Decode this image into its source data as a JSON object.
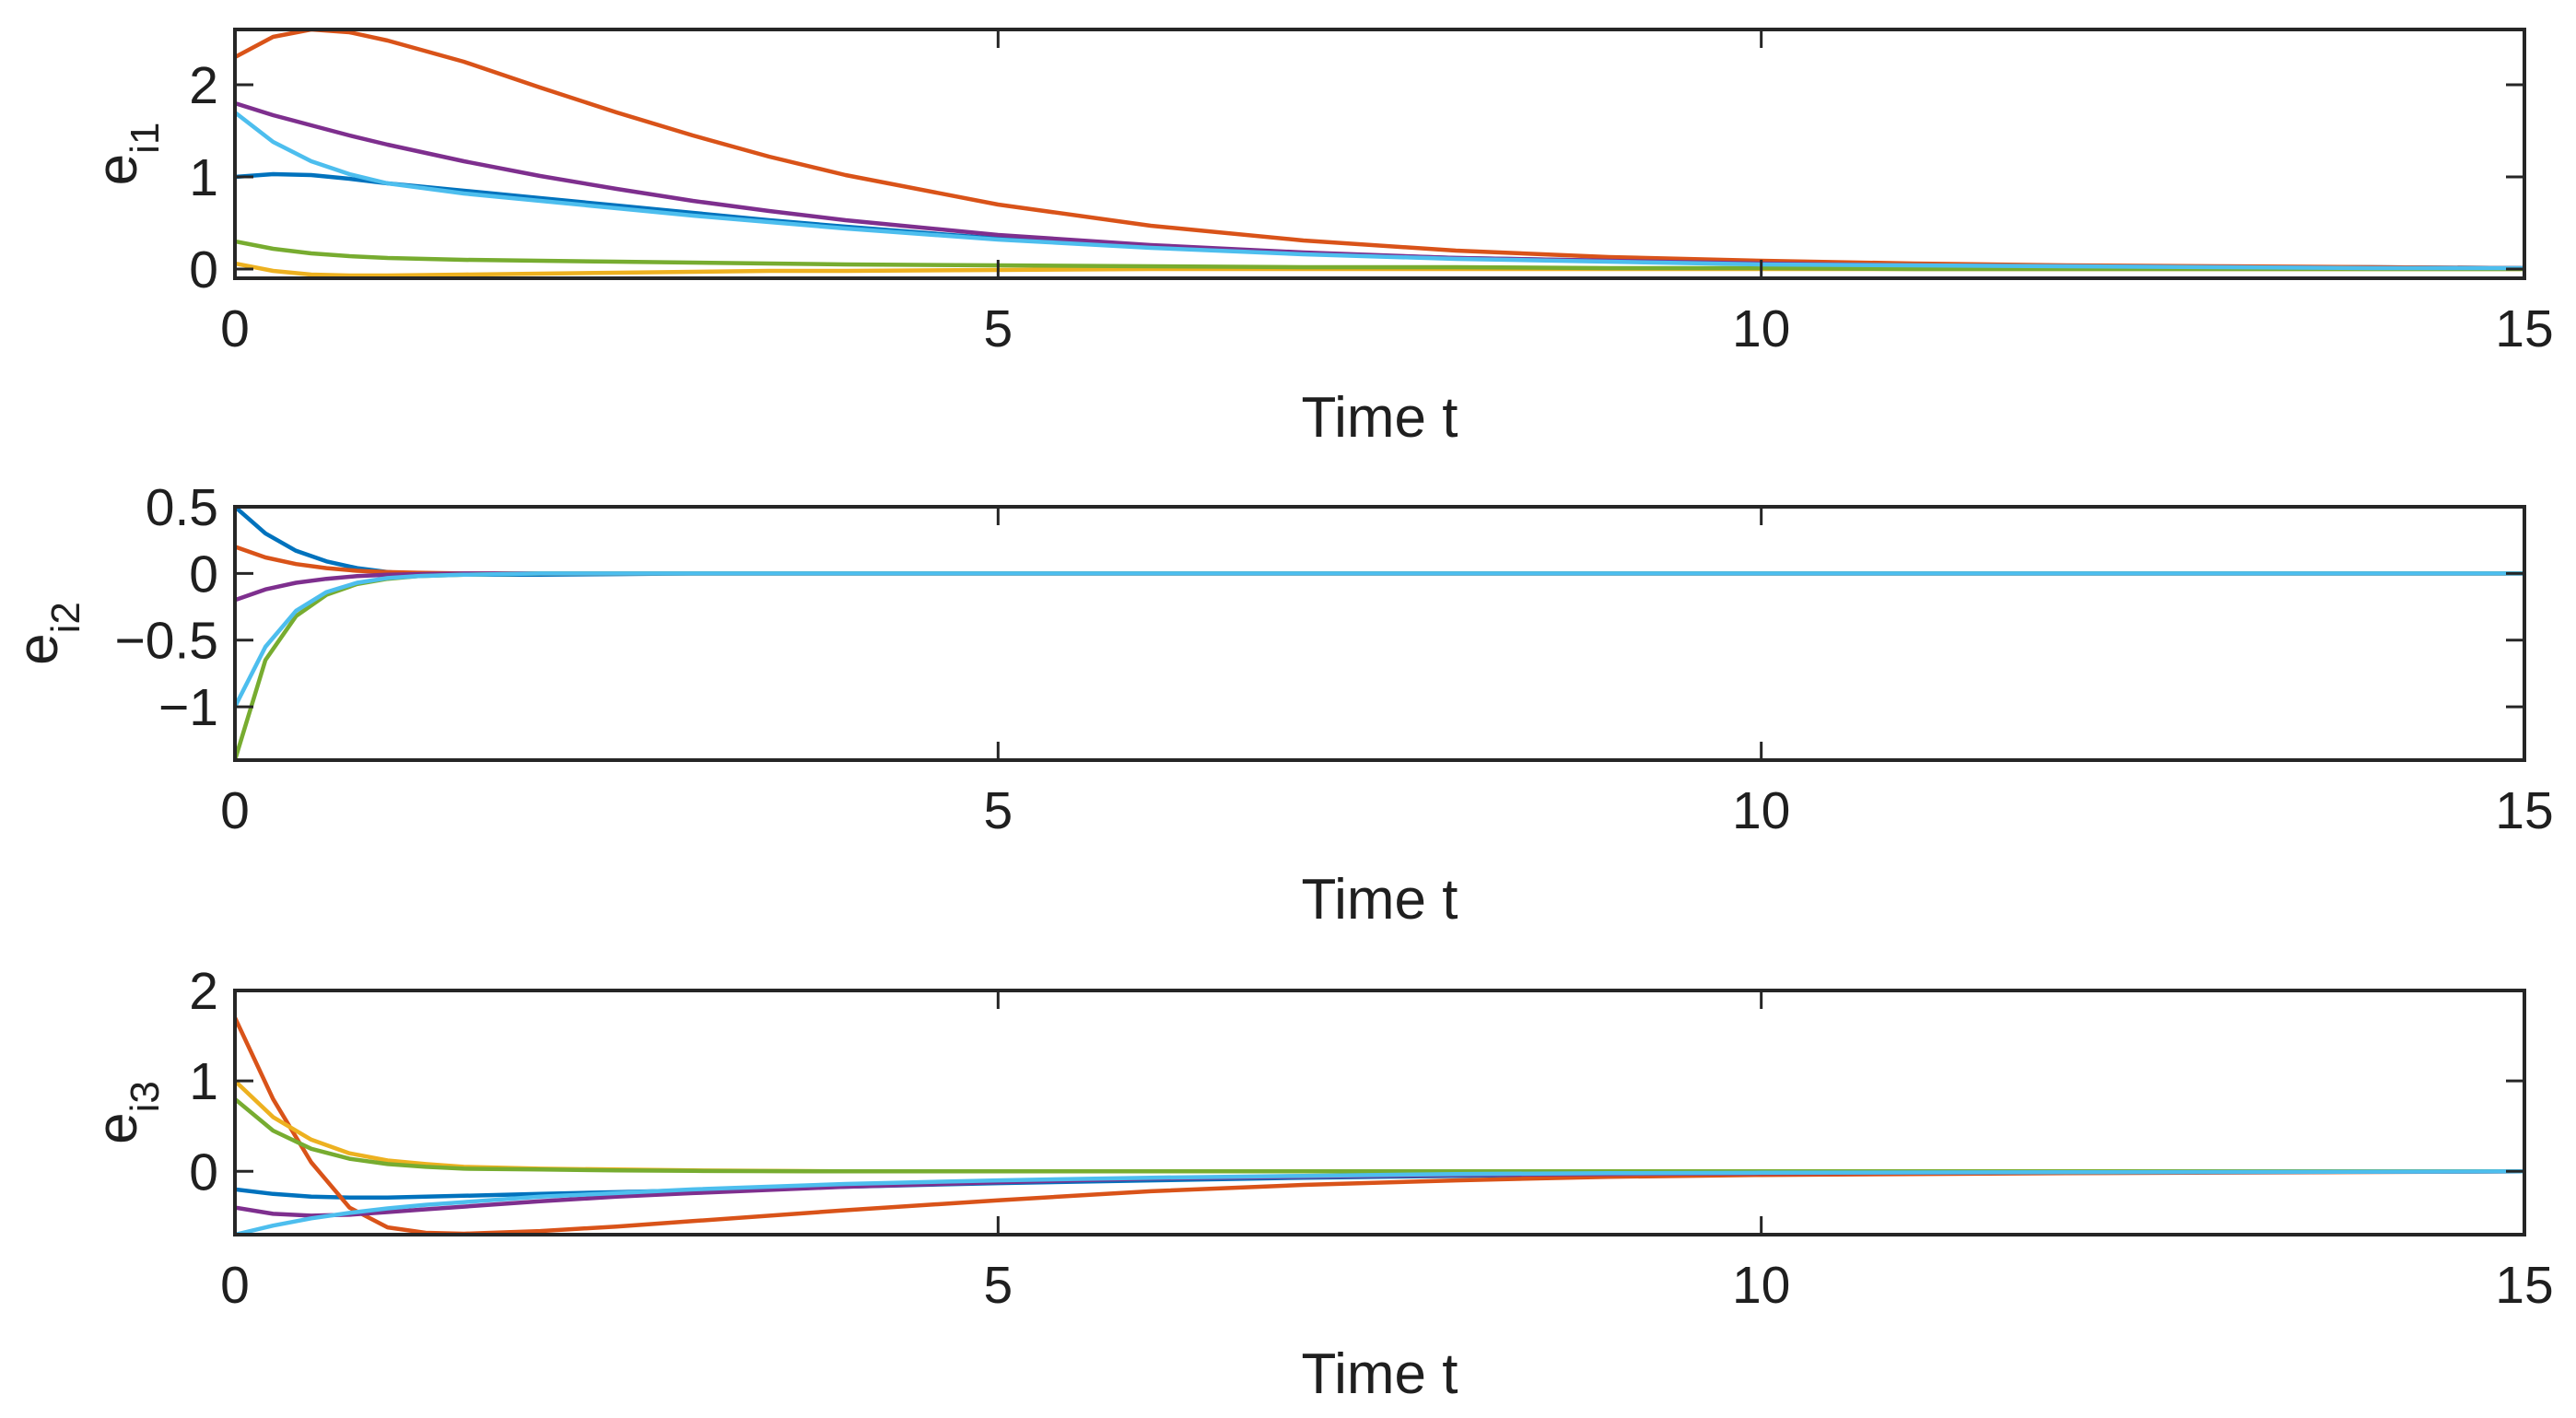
{
  "chart_data": [
    {
      "type": "line",
      "title": "",
      "xlabel": "Time t",
      "ylabel": "e",
      "ylabel_sub": "i1",
      "xlim": [
        0,
        15
      ],
      "ylim": [
        -0.1,
        2.6
      ],
      "xticks": [
        0,
        5,
        10,
        15
      ],
      "xtick_labels": [
        "0",
        "5",
        "10",
        "15"
      ],
      "yticks": [
        0,
        1,
        2
      ],
      "ytick_labels": [
        "0",
        "1",
        "2"
      ],
      "grid": false,
      "x": [
        0,
        0.25,
        0.5,
        0.75,
        1,
        1.5,
        2,
        2.5,
        3,
        3.5,
        4,
        5,
        6,
        7,
        8,
        9,
        10,
        11,
        12,
        13,
        14,
        15
      ],
      "series": [
        {
          "name": "blue",
          "color": "#0072BD",
          "values": [
            1.0,
            1.03,
            1.02,
            0.98,
            0.93,
            0.85,
            0.77,
            0.69,
            0.61,
            0.53,
            0.46,
            0.33,
            0.24,
            0.17,
            0.12,
            0.09,
            0.06,
            0.04,
            0.03,
            0.02,
            0.02,
            0.01
          ]
        },
        {
          "name": "orange",
          "color": "#D95319",
          "values": [
            2.3,
            2.52,
            2.6,
            2.57,
            2.48,
            2.25,
            1.97,
            1.7,
            1.45,
            1.22,
            1.02,
            0.7,
            0.47,
            0.31,
            0.2,
            0.13,
            0.09,
            0.06,
            0.04,
            0.03,
            0.02,
            0.01
          ]
        },
        {
          "name": "yellow",
          "color": "#EDB120",
          "values": [
            0.06,
            -0.02,
            -0.06,
            -0.07,
            -0.07,
            -0.06,
            -0.05,
            -0.04,
            -0.03,
            -0.02,
            -0.02,
            -0.01,
            0,
            0,
            0,
            0,
            0,
            0,
            0,
            0,
            0,
            0
          ]
        },
        {
          "name": "purple",
          "color": "#7E2F8E",
          "values": [
            1.8,
            1.67,
            1.56,
            1.45,
            1.35,
            1.17,
            1.01,
            0.87,
            0.74,
            0.63,
            0.53,
            0.37,
            0.26,
            0.18,
            0.12,
            0.09,
            0.06,
            0.04,
            0.03,
            0.02,
            0.01,
            0.01
          ]
        },
        {
          "name": "green",
          "color": "#77AC30",
          "values": [
            0.3,
            0.22,
            0.17,
            0.14,
            0.12,
            0.1,
            0.09,
            0.08,
            0.07,
            0.06,
            0.05,
            0.04,
            0.03,
            0.02,
            0.02,
            0.01,
            0.01,
            0,
            0,
            0,
            0,
            0
          ]
        },
        {
          "name": "light-blue",
          "color": "#4DBEEE",
          "values": [
            1.7,
            1.38,
            1.17,
            1.03,
            0.93,
            0.82,
            0.74,
            0.66,
            0.58,
            0.51,
            0.44,
            0.32,
            0.23,
            0.16,
            0.11,
            0.08,
            0.05,
            0.04,
            0.03,
            0.02,
            0.01,
            0.01
          ]
        }
      ]
    },
    {
      "type": "line",
      "title": "",
      "xlabel": "Time t",
      "ylabel": "e",
      "ylabel_sub": "i2",
      "xlim": [
        0,
        15
      ],
      "ylim": [
        -1.4,
        0.5
      ],
      "xticks": [
        0,
        5,
        10,
        15
      ],
      "xtick_labels": [
        "0",
        "5",
        "10",
        "15"
      ],
      "yticks": [
        0.5,
        0,
        -0.5,
        -1
      ],
      "ytick_labels": [
        "0.5",
        "0",
        "−0.5",
        "−1"
      ],
      "grid": false,
      "x": [
        0,
        0.2,
        0.4,
        0.6,
        0.8,
        1.0,
        1.2,
        1.5,
        2.0,
        2.5,
        3,
        4,
        6,
        8,
        10,
        12,
        15
      ],
      "series": [
        {
          "name": "blue",
          "color": "#0072BD",
          "values": [
            0.5,
            0.3,
            0.17,
            0.09,
            0.04,
            0.01,
            -0.005,
            -0.01,
            -0.01,
            -0.005,
            0,
            0,
            0,
            0,
            0,
            0,
            0
          ]
        },
        {
          "name": "orange",
          "color": "#D95319",
          "values": [
            0.2,
            0.12,
            0.07,
            0.04,
            0.02,
            0.01,
            0.005,
            0,
            0,
            0,
            0,
            0,
            0,
            0,
            0,
            0,
            0
          ]
        },
        {
          "name": "purple",
          "color": "#7E2F8E",
          "values": [
            -0.2,
            -0.12,
            -0.07,
            -0.04,
            -0.02,
            -0.01,
            -0.005,
            0,
            0,
            0,
            0,
            0,
            0,
            0,
            0,
            0,
            0
          ]
        },
        {
          "name": "green",
          "color": "#77AC30",
          "values": [
            -1.4,
            -0.65,
            -0.32,
            -0.16,
            -0.08,
            -0.04,
            -0.02,
            -0.01,
            0,
            0,
            0,
            0,
            0,
            0,
            0,
            0,
            0
          ]
        },
        {
          "name": "light-blue",
          "color": "#4DBEEE",
          "values": [
            -1.0,
            -0.55,
            -0.28,
            -0.14,
            -0.07,
            -0.035,
            -0.02,
            -0.01,
            0,
            0,
            0,
            0,
            0,
            0,
            0,
            0,
            0
          ]
        }
      ]
    },
    {
      "type": "line",
      "title": "",
      "xlabel": "Time t",
      "ylabel": "e",
      "ylabel_sub": "i3",
      "xlim": [
        0,
        15
      ],
      "ylim": [
        -0.7,
        2.0
      ],
      "xticks": [
        0,
        5,
        10,
        15
      ],
      "xtick_labels": [
        "0",
        "5",
        "10",
        "15"
      ],
      "yticks": [
        0,
        1,
        2
      ],
      "ytick_labels": [
        "0",
        "1",
        "2"
      ],
      "grid": false,
      "x": [
        0,
        0.25,
        0.5,
        0.75,
        1,
        1.25,
        1.5,
        2,
        2.5,
        3,
        4,
        5,
        6,
        7,
        8,
        9,
        10,
        12,
        15
      ],
      "series": [
        {
          "name": "blue",
          "color": "#0072BD",
          "values": [
            -0.2,
            -0.25,
            -0.28,
            -0.29,
            -0.29,
            -0.28,
            -0.27,
            -0.25,
            -0.23,
            -0.21,
            -0.17,
            -0.13,
            -0.1,
            -0.07,
            -0.05,
            -0.03,
            -0.02,
            -0.01,
            0
          ]
        },
        {
          "name": "orange",
          "color": "#D95319",
          "values": [
            1.7,
            0.8,
            0.1,
            -0.4,
            -0.62,
            -0.68,
            -0.69,
            -0.66,
            -0.61,
            -0.55,
            -0.43,
            -0.32,
            -0.22,
            -0.15,
            -0.1,
            -0.06,
            -0.04,
            -0.02,
            0
          ]
        },
        {
          "name": "yellow",
          "color": "#EDB120",
          "values": [
            1.0,
            0.6,
            0.35,
            0.2,
            0.12,
            0.08,
            0.05,
            0.03,
            0.02,
            0.01,
            0,
            0,
            0,
            0,
            0,
            0,
            0,
            0,
            0
          ]
        },
        {
          "name": "purple",
          "color": "#7E2F8E",
          "values": [
            -0.4,
            -0.47,
            -0.49,
            -0.48,
            -0.45,
            -0.42,
            -0.39,
            -0.33,
            -0.28,
            -0.24,
            -0.17,
            -0.12,
            -0.08,
            -0.06,
            -0.04,
            -0.03,
            -0.02,
            -0.01,
            0
          ]
        },
        {
          "name": "green",
          "color": "#77AC30",
          "values": [
            0.8,
            0.45,
            0.25,
            0.14,
            0.08,
            0.05,
            0.03,
            0.02,
            0.01,
            0.005,
            0,
            0,
            0,
            0,
            0,
            0,
            0,
            0,
            0
          ]
        },
        {
          "name": "light-blue",
          "color": "#4DBEEE",
          "values": [
            -0.7,
            -0.6,
            -0.52,
            -0.46,
            -0.41,
            -0.37,
            -0.34,
            -0.28,
            -0.24,
            -0.2,
            -0.14,
            -0.1,
            -0.07,
            -0.05,
            -0.03,
            -0.02,
            -0.015,
            -0.01,
            0
          ]
        }
      ]
    }
  ]
}
